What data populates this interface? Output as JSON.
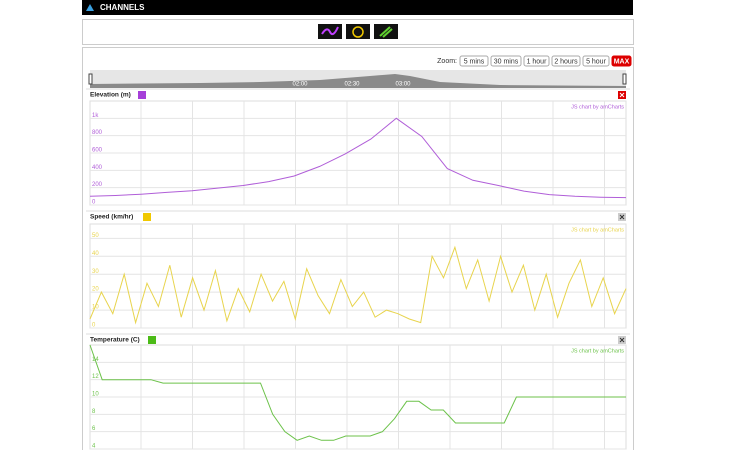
{
  "header": {
    "title": "CHANNELS"
  },
  "toolbar": {
    "zoom_label": "Zoom:",
    "buttons": [
      "5 mins",
      "30 mins",
      "1 hour",
      "2 hours",
      "5 hour",
      "MAX"
    ]
  },
  "navigator": {
    "labels": [
      "02:00",
      "02:30",
      "03:00"
    ]
  },
  "chart_data": [
    {
      "type": "line",
      "title": "Elevation (m)",
      "color": "#b05ed8",
      "swatch": "#a63fd9",
      "credit": "JS chart by amCharts",
      "grid": true,
      "ylim": [
        0,
        1200
      ],
      "yticks": [
        0,
        200,
        400,
        600,
        800,
        {
          "value": 1000,
          "label": "1k"
        }
      ],
      "values": [
        100,
        110,
        125,
        145,
        165,
        195,
        225,
        270,
        335,
        445,
        590,
        760,
        1000,
        790,
        420,
        285,
        225,
        160,
        120,
        100,
        90,
        85
      ]
    },
    {
      "type": "line",
      "title": "Speed (km/hr)",
      "color": "#e8d44d",
      "swatch": "#f0c800",
      "credit": "JS chart by amCharts",
      "grid": true,
      "ylim": [
        0,
        58
      ],
      "yticks": [
        0,
        10,
        20,
        30,
        40,
        50
      ],
      "values": [
        5,
        20,
        8,
        30,
        3,
        25,
        12,
        35,
        6,
        28,
        10,
        32,
        4,
        22,
        9,
        30,
        15,
        26,
        5,
        33,
        18,
        8,
        27,
        12,
        20,
        6,
        10,
        8,
        5,
        3,
        40,
        28,
        45,
        22,
        38,
        15,
        40,
        20,
        35,
        10,
        30,
        6,
        25,
        38,
        12,
        28,
        8,
        22
      ]
    },
    {
      "type": "line",
      "title": "Temperature (C)",
      "color": "#6cc24a",
      "swatch": "#4cbb17",
      "credit": "JS chart by amCharts",
      "grid": true,
      "ylim": [
        4,
        16
      ],
      "yticks": [
        4,
        6,
        8,
        10,
        12,
        14
      ],
      "values": [
        16,
        12,
        12,
        12,
        12,
        12,
        11.6,
        11.6,
        11.6,
        11.6,
        11.6,
        11.6,
        11.6,
        11.6,
        11.6,
        8,
        6,
        5,
        5.5,
        5,
        5,
        5.5,
        5.5,
        5.5,
        6,
        7.5,
        9.5,
        9.5,
        8.5,
        8.5,
        7,
        7,
        7,
        7,
        7,
        10,
        10,
        10,
        10,
        10,
        10,
        10,
        10,
        10,
        10
      ]
    }
  ]
}
